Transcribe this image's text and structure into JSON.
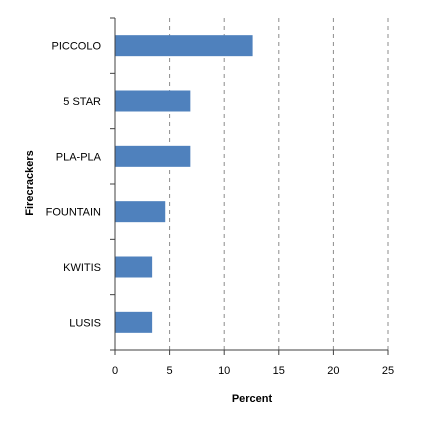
{
  "chart_data": {
    "type": "bar",
    "orientation": "horizontal",
    "title": "",
    "xlabel": "Percent",
    "ylabel": "Firecrackers",
    "categories": [
      "PICCOLO",
      "5 STAR",
      "PLA-PLA",
      "FOUNTAIN",
      "KWITIS",
      "LUSIS"
    ],
    "values": [
      12.6,
      6.9,
      6.9,
      4.6,
      3.4,
      3.4
    ],
    "xlim": [
      0,
      25
    ],
    "xticks": [
      0,
      5,
      10,
      15,
      20,
      25
    ],
    "grid": "vertical dashed",
    "legend": "none",
    "bar_color": "#4f81bd",
    "grid_color": "#8c8c8c",
    "axis_color": "#404040"
  }
}
